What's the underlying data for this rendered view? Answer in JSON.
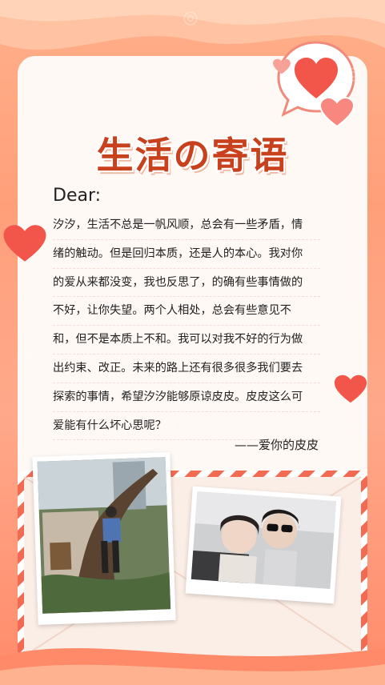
{
  "title": "生活の寄语",
  "salutation": "Dear:",
  "body_lines": [
    "汐汐，生活不总是一帆风顺，总会有一些矛盾，情",
    "绪的触动。但是回归本质，还是人的本心。我对你",
    "的爱从来都没变，我也反思了，的确有些事情做的",
    "不好，让你失望。两个人相处，总会有些意见不",
    "和，但不是本质上不和。我可以对我不好的行为做",
    "出约束、改正。未来的路上还有很多很多我们要去",
    "探索的事情，希望汐汐能够原谅皮皮。皮皮这么可",
    "爱能有什么坏心思呢？"
  ],
  "signature": "——爱你的皮皮",
  "photos": {
    "left": {
      "caption": "tree-climbing-photo"
    },
    "right": {
      "caption": "couple-selfie-photo"
    }
  },
  "colors": {
    "accent": "#c8401c",
    "heart": "#f2564a",
    "background": "#ffa484",
    "paper": "#fff9f5"
  }
}
